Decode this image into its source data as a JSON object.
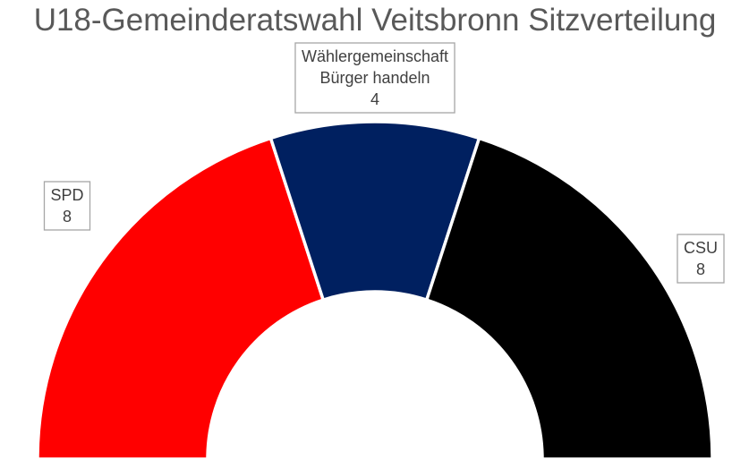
{
  "chart_data": {
    "type": "pie",
    "subtype": "half-donut",
    "title": "U18-Gemeinderatswahl Veitsbronn Sitzverteilung",
    "categories": [
      "SPD",
      "Wählergemeinschaft Bürger handeln",
      "CSU"
    ],
    "label_lines": [
      [
        "SPD"
      ],
      [
        "Wählergemeinschaft",
        "Bürger handeln"
      ],
      [
        "CSU"
      ]
    ],
    "values": [
      8,
      4,
      8
    ],
    "value_labels": [
      "8",
      "4",
      "8"
    ],
    "colors": [
      "#ff0000",
      "#002060",
      "#000000"
    ],
    "legend": "none"
  }
}
